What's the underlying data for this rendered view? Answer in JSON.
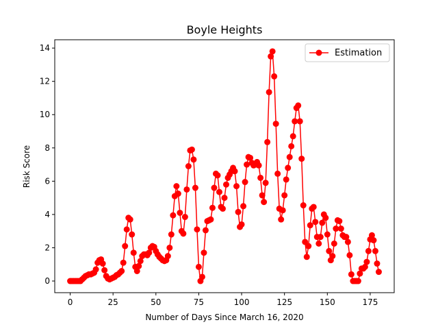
{
  "chart_data": {
    "type": "line",
    "title": "Boyle Heights",
    "xlabel": "Number of Days Since March 16, 2020",
    "ylabel": "Risk Score",
    "xlim": [
      -9,
      189
    ],
    "ylim": [
      -0.7,
      14.5
    ],
    "xticks": [
      0,
      25,
      50,
      75,
      100,
      125,
      150,
      175
    ],
    "yticks": [
      0,
      2,
      4,
      6,
      8,
      10,
      12,
      14
    ],
    "grid": false,
    "legend_position": "top-right",
    "series": [
      {
        "name": "Estimation",
        "color": "#ff0000",
        "marker": "circle",
        "x": [
          0,
          1,
          2,
          3,
          4,
          5,
          6,
          7,
          8,
          9,
          10,
          11,
          12,
          13,
          14,
          15,
          16,
          17,
          18,
          19,
          20,
          21,
          22,
          23,
          24,
          25,
          26,
          27,
          28,
          29,
          30,
          31,
          32,
          33,
          34,
          35,
          36,
          37,
          38,
          39,
          40,
          41,
          42,
          43,
          44,
          45,
          46,
          47,
          48,
          49,
          50,
          51,
          52,
          53,
          54,
          55,
          56,
          57,
          58,
          59,
          60,
          61,
          62,
          63,
          64,
          65,
          66,
          67,
          68,
          69,
          70,
          71,
          72,
          73,
          74,
          75,
          76,
          77,
          78,
          79,
          80,
          81,
          82,
          83,
          84,
          85,
          86,
          87,
          88,
          89,
          90,
          91,
          92,
          93,
          94,
          95,
          96,
          97,
          98,
          99,
          100,
          101,
          102,
          103,
          104,
          105,
          106,
          107,
          108,
          109,
          110,
          111,
          112,
          113,
          114,
          115,
          116,
          117,
          118,
          119,
          120,
          121,
          122,
          123,
          124,
          125,
          126,
          127,
          128,
          129,
          130,
          131,
          132,
          133,
          134,
          135,
          136,
          137,
          138,
          139,
          140,
          141,
          142,
          143,
          144,
          145,
          146,
          147,
          148,
          149,
          150,
          151,
          152,
          153,
          154,
          155,
          156,
          157,
          158,
          159,
          160,
          161,
          162,
          163,
          164,
          165,
          166,
          167,
          168,
          169,
          170,
          171,
          172,
          173,
          174,
          175,
          176,
          177,
          178,
          179,
          180
        ],
        "y": [
          0.0,
          0.0,
          0.0,
          0.0,
          0.0,
          0.0,
          0.0,
          0.1,
          0.2,
          0.3,
          0.35,
          0.4,
          0.4,
          0.45,
          0.5,
          0.7,
          1.1,
          1.25,
          1.3,
          1.05,
          0.65,
          0.3,
          0.15,
          0.1,
          0.15,
          0.2,
          0.25,
          0.35,
          0.4,
          0.5,
          0.6,
          1.1,
          2.1,
          3.1,
          3.8,
          3.7,
          2.8,
          1.7,
          0.85,
          0.6,
          0.9,
          1.2,
          1.5,
          1.6,
          1.6,
          1.55,
          1.7,
          2.0,
          2.1,
          2.05,
          1.8,
          1.6,
          1.45,
          1.35,
          1.25,
          1.2,
          1.25,
          1.5,
          2.0,
          2.8,
          3.95,
          5.1,
          5.7,
          5.25,
          4.1,
          3.0,
          2.85,
          3.85,
          5.5,
          6.9,
          7.85,
          7.9,
          7.3,
          5.6,
          3.1,
          0.85,
          0.0,
          0.25,
          1.7,
          3.05,
          3.6,
          3.65,
          3.7,
          4.4,
          5.6,
          6.45,
          6.35,
          5.35,
          4.45,
          4.35,
          5.0,
          5.8,
          6.2,
          6.4,
          6.6,
          6.8,
          6.6,
          5.7,
          4.15,
          3.25,
          3.4,
          4.5,
          5.95,
          7.0,
          7.45,
          7.4,
          7.1,
          6.95,
          7.0,
          7.15,
          6.95,
          6.2,
          5.15,
          4.75,
          5.9,
          8.35,
          11.35,
          13.5,
          13.8,
          12.3,
          9.45,
          6.45,
          4.35,
          3.7,
          4.25,
          5.15,
          6.1,
          6.8,
          7.45,
          8.1,
          8.7,
          9.6,
          10.4,
          10.55,
          9.6,
          7.35,
          4.55,
          2.35,
          1.45,
          2.1,
          3.35,
          4.35,
          4.45,
          3.55,
          2.65,
          2.25,
          2.65,
          3.5,
          4.0,
          3.8,
          2.8,
          1.8,
          1.25,
          1.5,
          2.25,
          3.15,
          3.65,
          3.6,
          3.15,
          2.75,
          2.65,
          2.65,
          2.35,
          1.55,
          0.4,
          0.0,
          0.0,
          0.0,
          0.0,
          0.45,
          0.75,
          0.75,
          0.85,
          1.15,
          1.8,
          2.5,
          2.75,
          2.45,
          1.8,
          1.05,
          0.55
        ]
      }
    ]
  }
}
